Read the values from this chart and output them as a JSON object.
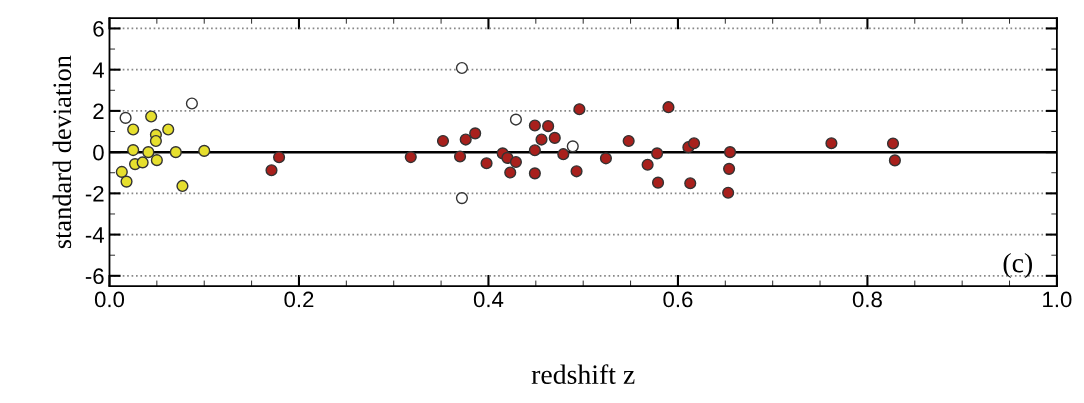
{
  "chart_data": {
    "type": "scatter",
    "xlabel": "redshift z",
    "ylabel": "standard deviation",
    "xlim": [
      0.0,
      1.0
    ],
    "xticks": [
      {
        "value": 0.0,
        "label": "0.0"
      },
      0.2,
      0.4,
      0.6,
      0.8,
      {
        "value": 1.0,
        "label": "1.0"
      }
    ],
    "ylim": [
      -6.5,
      6.5
    ],
    "yticks": [
      -6,
      -4,
      -2,
      0,
      2,
      4,
      6
    ],
    "grid": "y",
    "legend": false,
    "marker": "circle",
    "ref_lines": [
      {
        "axis": "y",
        "value": 0,
        "color": "#000000",
        "line_style": "solid"
      }
    ],
    "annotations": [
      "(c)"
    ],
    "series": [
      {
        "color": "#e6df2e",
        "x": [
          0.013,
          0.018,
          0.025,
          0.025,
          0.027,
          0.035,
          0.041,
          0.044,
          0.049,
          0.049,
          0.05,
          0.062,
          0.07,
          0.077,
          0.1
        ],
        "values": [
          -0.96,
          -1.43,
          1.1,
          0.1,
          -0.58,
          -0.5,
          0.0,
          1.73,
          0.84,
          0.54,
          -0.39,
          1.1,
          0.0,
          -1.64,
          0.06
        ]
      },
      {
        "color": "#a8201c",
        "x": [
          0.171,
          0.179,
          0.318,
          0.352,
          0.37,
          0.376,
          0.386,
          0.398,
          0.415,
          0.42,
          0.429,
          0.423,
          0.449,
          0.463,
          0.456,
          0.47,
          0.449,
          0.449,
          0.479,
          0.493,
          0.496,
          0.524,
          0.548,
          0.568,
          0.578,
          0.579,
          0.59,
          0.611,
          0.617,
          0.613,
          0.655,
          0.654,
          0.653,
          0.762,
          0.827,
          0.829
        ],
        "values": [
          -0.88,
          -0.25,
          -0.24,
          0.54,
          -0.21,
          0.61,
          0.91,
          -0.54,
          -0.06,
          -0.28,
          -0.48,
          -0.99,
          1.29,
          1.26,
          0.61,
          0.69,
          0.09,
          -1.03,
          -0.1,
          -0.93,
          2.08,
          -0.3,
          0.54,
          -0.61,
          -0.06,
          -1.48,
          2.18,
          0.24,
          0.43,
          -1.51,
          0.0,
          -0.81,
          -1.97,
          0.43,
          0.42,
          -0.4
        ]
      },
      {
        "color": "#ffffff",
        "x": [
          0.017,
          0.087,
          0.372,
          0.372,
          0.429,
          0.489
        ],
        "values": [
          1.66,
          2.36,
          4.08,
          -2.23,
          1.58,
          0.28
        ]
      }
    ]
  }
}
